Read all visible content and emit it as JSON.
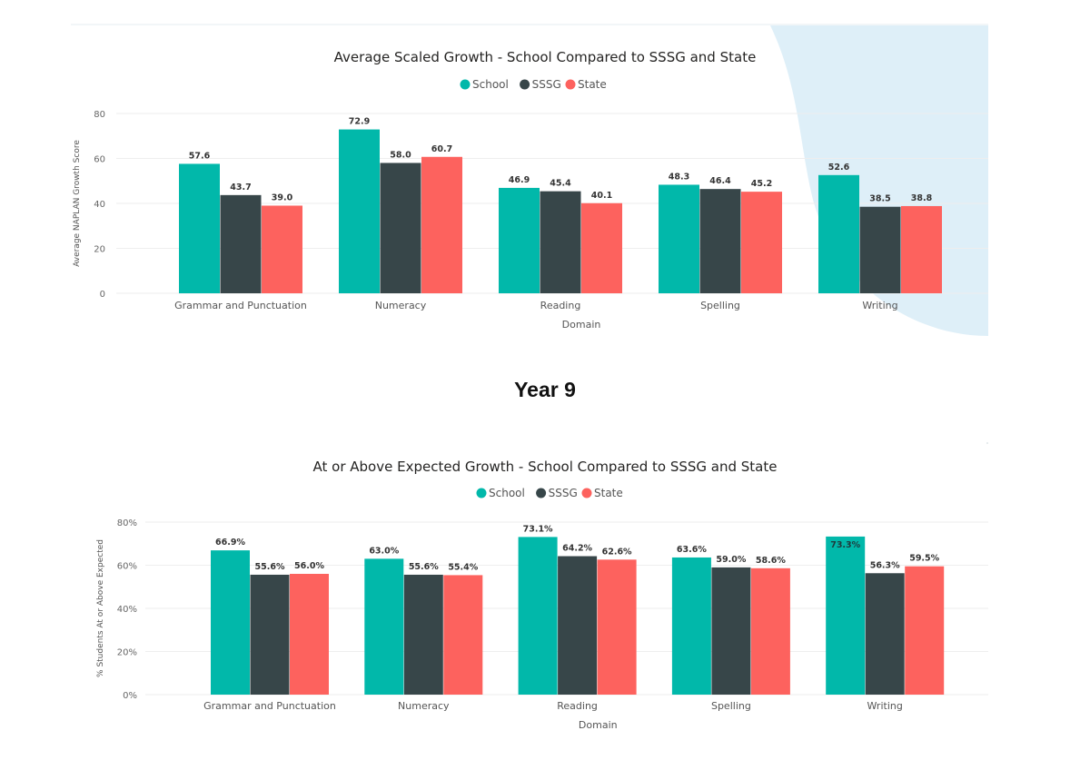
{
  "section_heading": "Year 9",
  "colors": {
    "School": "#01b8aa",
    "SSSG": "#374649",
    "State": "#fd625e",
    "bg_shape": "#deeff8"
  },
  "chart_data": [
    {
      "type": "bar",
      "title": "Average Scaled Growth - School Compared to SSSG and State",
      "xlabel": "Domain",
      "ylabel": "Average NAPLAN Growth Score",
      "ylim": [
        0,
        80
      ],
      "yticks": [
        "0",
        "20",
        "40",
        "60",
        "80"
      ],
      "ytick_values": [
        0,
        20,
        40,
        60,
        80
      ],
      "legend": "top-center",
      "grid": true,
      "categories": [
        "Grammar and Punctuation",
        "Numeracy",
        "Reading",
        "Spelling",
        "Writing"
      ],
      "series": [
        {
          "name": "School",
          "values": [
            57.6,
            72.9,
            46.9,
            48.3,
            52.6
          ],
          "labels": [
            "57.6",
            "72.9",
            "46.9",
            "48.3",
            "52.6"
          ]
        },
        {
          "name": "SSSG",
          "values": [
            43.7,
            58.0,
            45.4,
            46.4,
            38.5
          ],
          "labels": [
            "43.7",
            "58.0",
            "45.4",
            "46.4",
            "38.5"
          ]
        },
        {
          "name": "State",
          "values": [
            39.0,
            60.7,
            40.1,
            45.2,
            38.8
          ],
          "labels": [
            "39.0",
            "60.7",
            "40.1",
            "45.2",
            "38.8"
          ]
        }
      ]
    },
    {
      "type": "bar",
      "title": "At or Above Expected Growth - School Compared to SSSG and State",
      "xlabel": "Domain",
      "ylabel": "% Students At or Above Expected",
      "ylim": [
        0,
        80
      ],
      "yticks": [
        "0%",
        "20%",
        "40%",
        "60%",
        "80%"
      ],
      "ytick_values": [
        0,
        20,
        40,
        60,
        80
      ],
      "legend": "top-center",
      "grid": true,
      "categories": [
        "Grammar and Punctuation",
        "Numeracy",
        "Reading",
        "Spelling",
        "Writing"
      ],
      "series": [
        {
          "name": "School",
          "values": [
            66.9,
            63.0,
            73.1,
            63.6,
            73.3
          ],
          "labels": [
            "66.9%",
            "63.0%",
            "73.1%",
            "63.6%",
            "73.3%"
          ]
        },
        {
          "name": "SSSG",
          "values": [
            55.6,
            55.6,
            64.2,
            59.0,
            56.3
          ],
          "labels": [
            "55.6%",
            "55.6%",
            "64.2%",
            "59.0%",
            "56.3%"
          ]
        },
        {
          "name": "State",
          "values": [
            56.0,
            55.4,
            62.6,
            58.6,
            59.5
          ],
          "labels": [
            "56.0%",
            "55.4%",
            "62.6%",
            "58.6%",
            "59.5%"
          ]
        }
      ]
    }
  ]
}
